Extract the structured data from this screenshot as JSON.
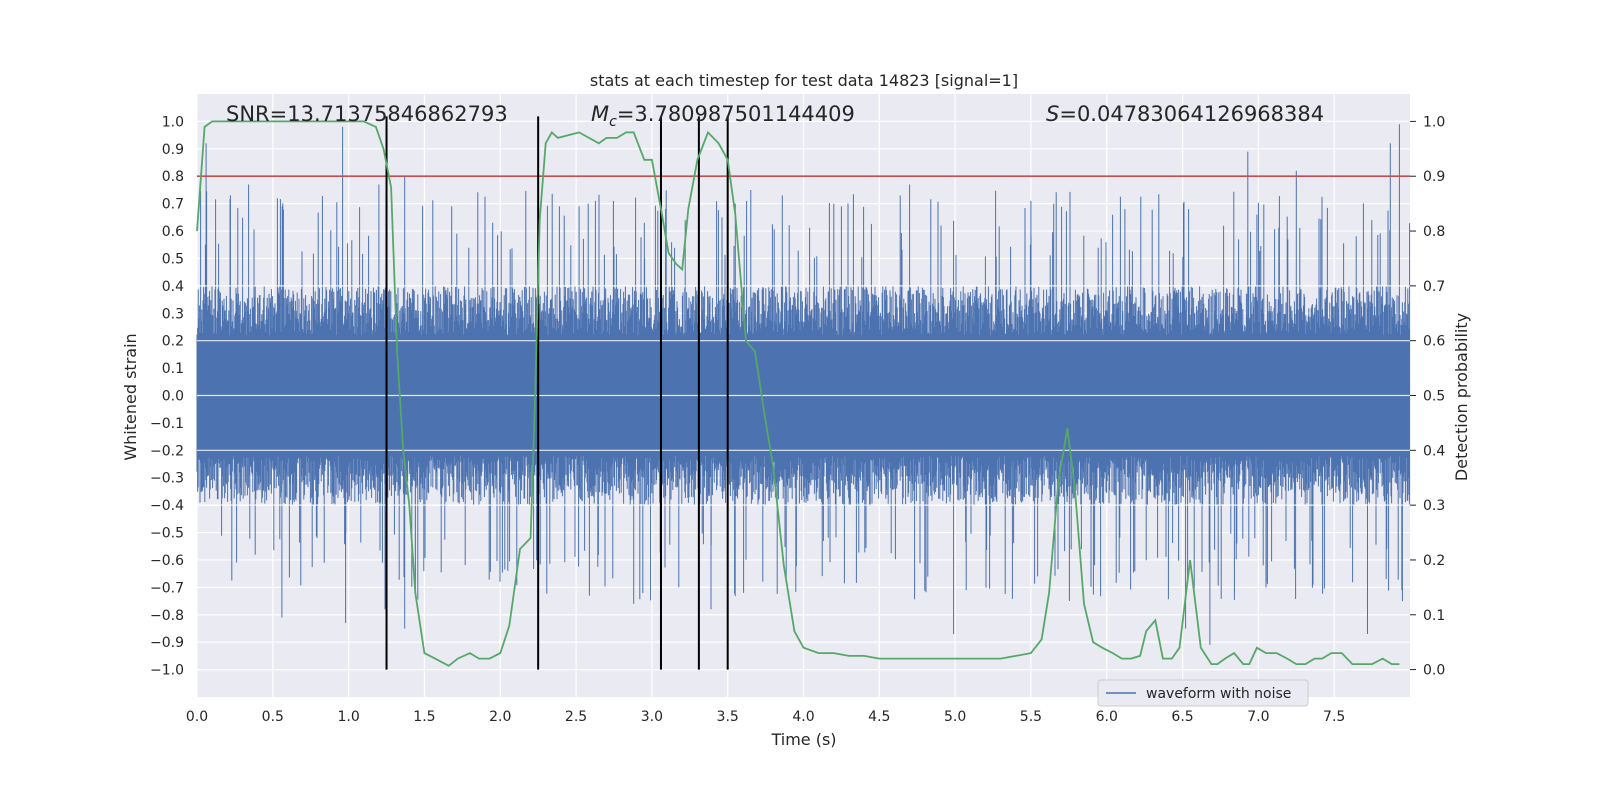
{
  "chart_data": {
    "type": "line",
    "title": "stats at each timestep for test data 14823 [signal=1]",
    "xlabel": "Time (s)",
    "ylabel_left": "Whitened strain",
    "ylabel_right": "Detection probability",
    "xlim": [
      0.0,
      8.0
    ],
    "ylim_left": [
      -1.1,
      1.1
    ],
    "ylim_right": [
      -0.05,
      1.05
    ],
    "grid": true,
    "x_ticks": [
      0.0,
      0.5,
      1.0,
      1.5,
      2.0,
      2.5,
      3.0,
      3.5,
      4.0,
      4.5,
      5.0,
      5.5,
      6.0,
      6.5,
      7.0,
      7.5
    ],
    "x_tick_labels": [
      "0.0",
      "0.5",
      "1.0",
      "1.5",
      "2.0",
      "2.5",
      "3.0",
      "3.5",
      "4.0",
      "4.5",
      "5.0",
      "5.5",
      "6.0",
      "6.5",
      "7.0",
      "7.5"
    ],
    "y_left_ticks": [
      1.0,
      0.9,
      0.8,
      0.7,
      0.6,
      0.5,
      0.4,
      0.3,
      0.2,
      0.1,
      0.0,
      -0.1,
      -0.2,
      -0.3,
      -0.4,
      -0.5,
      -0.6,
      -0.7,
      -0.8,
      -0.9,
      -1.0
    ],
    "y_left_tick_labels": [
      "1.0",
      "0.9",
      "0.8",
      "0.7",
      "0.6",
      "0.5",
      "0.4",
      "0.3",
      "0.2",
      "0.1",
      "0.0",
      "−0.1",
      "−0.2",
      "−0.3",
      "−0.4",
      "−0.5",
      "−0.6",
      "−0.7",
      "−0.8",
      "−0.9",
      "−1.0"
    ],
    "y_right_ticks": [
      1.0,
      0.9,
      0.8,
      0.7,
      0.6,
      0.5,
      0.4,
      0.3,
      0.2,
      0.1,
      0.0
    ],
    "y_right_tick_labels": [
      "1.0",
      "0.9",
      "0.8",
      "0.7",
      "0.6",
      "0.5",
      "0.4",
      "0.3",
      "0.2",
      "0.1",
      "0.0"
    ],
    "annotations": {
      "snr": "SNR=13.71375846862793",
      "mc_symbol": "M",
      "mc_subscript": "c",
      "mc_value": "=3.780987501144409",
      "s_symbol": "S",
      "s_value": "=0.04783064126968384"
    },
    "threshold": {
      "value": 0.9,
      "axis": "right",
      "color": "#c44e52"
    },
    "vertical_lines": [
      1.25,
      2.25,
      3.06,
      3.31,
      3.5
    ],
    "series": [
      {
        "name": "waveform with noise",
        "axis": "left",
        "color": "#4c72b0",
        "kind": "noise-envelope",
        "envelope": 0.4,
        "peaks": [
          [
            0.06,
            0.92
          ],
          [
            0.22,
            0.73
          ],
          [
            0.34,
            0.77
          ],
          [
            0.53,
            0.72
          ],
          [
            0.56,
            -0.81
          ],
          [
            0.96,
            0.98
          ],
          [
            0.98,
            -0.83
          ],
          [
            1.2,
            0.77
          ],
          [
            1.24,
            -0.78
          ],
          [
            1.37,
            0.8
          ],
          [
            1.37,
            -0.85
          ],
          [
            1.44,
            -0.71
          ],
          [
            1.68,
            0.69
          ],
          [
            1.95,
            0.63
          ],
          [
            2.05,
            -0.64
          ],
          [
            2.39,
            0.69
          ],
          [
            2.52,
            0.69
          ],
          [
            2.58,
            0.7
          ],
          [
            2.88,
            -0.76
          ],
          [
            2.95,
            0.63
          ],
          [
            3.22,
            0.64
          ],
          [
            3.39,
            -0.78
          ],
          [
            3.5,
            0.75
          ],
          [
            3.55,
            0.7
          ],
          [
            3.86,
            0.73
          ],
          [
            4.2,
            0.7
          ],
          [
            4.25,
            0.69
          ],
          [
            4.7,
            0.77
          ],
          [
            4.99,
            -0.87
          ],
          [
            5.5,
            0.71
          ],
          [
            5.65,
            0.7
          ],
          [
            6.12,
            0.68
          ],
          [
            6.54,
            0.68
          ],
          [
            6.52,
            -0.85
          ],
          [
            6.68,
            -0.91
          ],
          [
            6.93,
            0.89
          ],
          [
            6.99,
            0.66
          ],
          [
            7.05,
            -0.7
          ],
          [
            7.25,
            0.82
          ],
          [
            7.72,
            -0.87
          ],
          [
            7.87,
            0.92
          ],
          [
            7.93,
            0.99
          ],
          [
            7.95,
            -0.75
          ]
        ]
      },
      {
        "name": "detection probability",
        "axis": "right",
        "color": "#55a868",
        "kind": "line",
        "x": [
          0.0,
          0.05,
          0.1,
          0.2,
          0.4,
          0.6,
          0.8,
          1.0,
          1.1,
          1.18,
          1.23,
          1.28,
          1.32,
          1.36,
          1.4,
          1.44,
          1.5,
          1.57,
          1.66,
          1.72,
          1.8,
          1.86,
          1.93,
          2.0,
          2.06,
          2.13,
          2.2,
          2.23,
          2.26,
          2.3,
          2.34,
          2.38,
          2.45,
          2.52,
          2.65,
          2.7,
          2.77,
          2.83,
          2.88,
          2.95,
          3.0,
          3.06,
          3.11,
          3.16,
          3.2,
          3.24,
          3.3,
          3.37,
          3.44,
          3.5,
          3.55,
          3.62,
          3.68,
          3.74,
          3.8,
          3.87,
          3.94,
          4.0,
          4.1,
          4.2,
          4.3,
          4.4,
          4.5,
          4.6,
          4.7,
          4.8,
          4.9,
          5.0,
          5.1,
          5.2,
          5.3,
          5.4,
          5.5,
          5.57,
          5.62,
          5.68,
          5.74,
          5.79,
          5.85,
          5.91,
          5.97,
          6.04,
          6.1,
          6.16,
          6.22,
          6.26,
          6.32,
          6.37,
          6.43,
          6.48,
          6.55,
          6.62,
          6.69,
          6.73,
          6.78,
          6.84,
          6.9,
          6.94,
          6.99,
          7.05,
          7.12,
          7.19,
          7.25,
          7.31,
          7.37,
          7.42,
          7.48,
          7.55,
          7.62,
          7.68,
          7.75,
          7.82,
          7.88,
          7.93
        ],
        "y": [
          0.8,
          0.99,
          1.0,
          1.0,
          1.0,
          1.0,
          1.0,
          1.0,
          1.0,
          0.99,
          0.95,
          0.88,
          0.58,
          0.4,
          0.3,
          0.14,
          0.03,
          0.02,
          0.007,
          0.02,
          0.03,
          0.02,
          0.02,
          0.03,
          0.08,
          0.22,
          0.24,
          0.5,
          0.82,
          0.96,
          0.98,
          0.97,
          0.975,
          0.98,
          0.96,
          0.97,
          0.97,
          0.98,
          0.98,
          0.93,
          0.93,
          0.84,
          0.76,
          0.74,
          0.73,
          0.84,
          0.93,
          0.98,
          0.96,
          0.93,
          0.83,
          0.6,
          0.58,
          0.47,
          0.37,
          0.19,
          0.07,
          0.04,
          0.03,
          0.03,
          0.025,
          0.025,
          0.02,
          0.02,
          0.02,
          0.02,
          0.02,
          0.02,
          0.02,
          0.02,
          0.02,
          0.025,
          0.03,
          0.055,
          0.14,
          0.34,
          0.44,
          0.33,
          0.12,
          0.05,
          0.04,
          0.03,
          0.02,
          0.02,
          0.025,
          0.07,
          0.09,
          0.02,
          0.02,
          0.04,
          0.2,
          0.04,
          0.01,
          0.01,
          0.02,
          0.03,
          0.01,
          0.01,
          0.04,
          0.03,
          0.03,
          0.02,
          0.01,
          0.01,
          0.02,
          0.02,
          0.03,
          0.03,
          0.01,
          0.01,
          0.01,
          0.02,
          0.01,
          0.01
        ]
      }
    ],
    "legend": {
      "placement": "lower-right",
      "entries": [
        "waveform with noise"
      ]
    }
  }
}
